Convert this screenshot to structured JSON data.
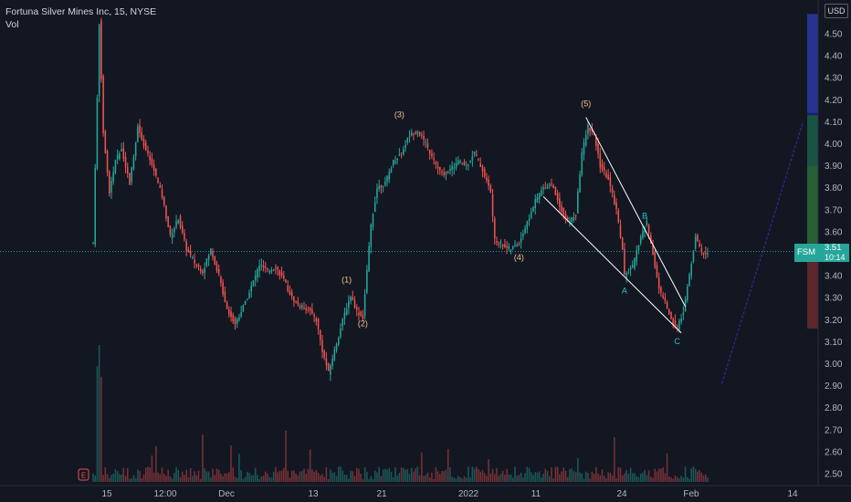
{
  "legend": {
    "title": "Fortuna Silver Mines Inc, 15, NYSE",
    "volume_label": "Vol"
  },
  "currency": "USD",
  "price_tag": {
    "symbol": "FSM",
    "price": "3.51",
    "countdown": "10:14"
  },
  "events": [
    {
      "label": "E",
      "position": "earnings marker near bottom-left"
    }
  ],
  "colors": {
    "background": "#131722",
    "up": "#26a69a",
    "down": "#ef5350",
    "trendline": "#ffffff",
    "wave_label": "#f7c28c",
    "abc_label": "#26c6da",
    "projection": "#2a2e9e"
  },
  "chart_data": {
    "type": "candlestick",
    "title": "Fortuna Silver Mines Inc, 15, NYSE",
    "y_ticks": [
      "4.50",
      "4.40",
      "4.30",
      "4.20",
      "4.10",
      "4.00",
      "3.90",
      "3.80",
      "3.70",
      "3.60",
      "3.50",
      "3.40",
      "3.30",
      "3.20",
      "3.10",
      "3.00",
      "2.90",
      "2.80",
      "2.70",
      "2.60",
      "2.50"
    ],
    "x_ticks": [
      "15",
      "12:00",
      "Dec",
      "13",
      "21",
      "2022",
      "11",
      "24",
      "Feb",
      "14"
    ],
    "ylim": [
      2.46,
      4.59
    ],
    "last_price": 3.51,
    "price_path": [
      [
        0,
        3.55
      ],
      [
        3,
        4.55
      ],
      [
        5,
        4.05
      ],
      [
        8,
        3.78
      ],
      [
        11,
        3.92
      ],
      [
        14,
        3.98
      ],
      [
        18,
        3.82
      ],
      [
        22,
        4.08
      ],
      [
        26,
        3.97
      ],
      [
        30,
        3.88
      ],
      [
        34,
        3.76
      ],
      [
        38,
        3.58
      ],
      [
        42,
        3.66
      ],
      [
        46,
        3.52
      ],
      [
        50,
        3.46
      ],
      [
        54,
        3.42
      ],
      [
        58,
        3.52
      ],
      [
        62,
        3.4
      ],
      [
        66,
        3.25
      ],
      [
        70,
        3.18
      ],
      [
        74,
        3.26
      ],
      [
        78,
        3.35
      ],
      [
        82,
        3.45
      ],
      [
        86,
        3.42
      ],
      [
        90,
        3.44
      ],
      [
        94,
        3.38
      ],
      [
        98,
        3.3
      ],
      [
        102,
        3.26
      ],
      [
        106,
        3.25
      ],
      [
        110,
        3.2
      ],
      [
        113,
        3.06
      ],
      [
        116,
        2.96
      ],
      [
        119,
        3.06
      ],
      [
        124,
        3.23
      ],
      [
        127,
        3.31
      ],
      [
        130,
        3.24
      ],
      [
        133,
        3.21
      ],
      [
        137,
        3.63
      ],
      [
        140,
        3.8
      ],
      [
        144,
        3.82
      ],
      [
        148,
        3.92
      ],
      [
        152,
        3.96
      ],
      [
        156,
        4.04
      ],
      [
        160,
        4.06
      ],
      [
        164,
        4.0
      ],
      [
        168,
        3.92
      ],
      [
        172,
        3.86
      ],
      [
        176,
        3.88
      ],
      [
        180,
        3.92
      ],
      [
        184,
        3.9
      ],
      [
        188,
        3.96
      ],
      [
        192,
        3.88
      ],
      [
        196,
        3.78
      ],
      [
        198,
        3.56
      ],
      [
        202,
        3.54
      ],
      [
        206,
        3.52
      ],
      [
        210,
        3.55
      ],
      [
        214,
        3.64
      ],
      [
        218,
        3.74
      ],
      [
        222,
        3.8
      ],
      [
        226,
        3.82
      ],
      [
        230,
        3.72
      ],
      [
        234,
        3.64
      ],
      [
        238,
        3.68
      ],
      [
        241,
        3.96
      ],
      [
        244,
        4.08
      ],
      [
        247,
        4.04
      ],
      [
        250,
        3.9
      ],
      [
        254,
        3.84
      ],
      [
        258,
        3.7
      ],
      [
        261,
        3.52
      ],
      [
        262,
        3.4
      ],
      [
        266,
        3.44
      ],
      [
        270,
        3.58
      ],
      [
        273,
        3.64
      ],
      [
        276,
        3.5
      ],
      [
        279,
        3.34
      ],
      [
        282,
        3.28
      ],
      [
        285,
        3.2
      ],
      [
        288,
        3.16
      ],
      [
        291,
        3.24
      ],
      [
        294,
        3.4
      ],
      [
        297,
        3.58
      ],
      [
        300,
        3.5
      ],
      [
        303,
        3.51
      ]
    ],
    "wave_labels": [
      {
        "text": "(1)",
        "x": 125,
        "y": 3.37
      },
      {
        "text": "(2)",
        "x": 133,
        "y": 3.17
      },
      {
        "text": "(3)",
        "x": 151,
        "y": 4.12
      },
      {
        "text": "(4)",
        "x": 210,
        "y": 3.47
      },
      {
        "text": "(5)",
        "x": 243,
        "y": 4.17
      },
      {
        "text": "A",
        "x": 262,
        "y": 3.32
      },
      {
        "text": "B",
        "x": 272,
        "y": 3.66
      },
      {
        "text": "C",
        "x": 288,
        "y": 3.09
      }
    ],
    "trendlines": [
      {
        "from": [
          222,
          3.76
        ],
        "to": [
          290,
          3.14
        ]
      },
      {
        "from": [
          243,
          4.12
        ],
        "to": [
          292,
          3.26
        ]
      }
    ],
    "projection": {
      "from": [
        310,
        2.91
      ],
      "to": [
        350,
        4.1
      ]
    },
    "volume": "bars along bottom of chart"
  }
}
